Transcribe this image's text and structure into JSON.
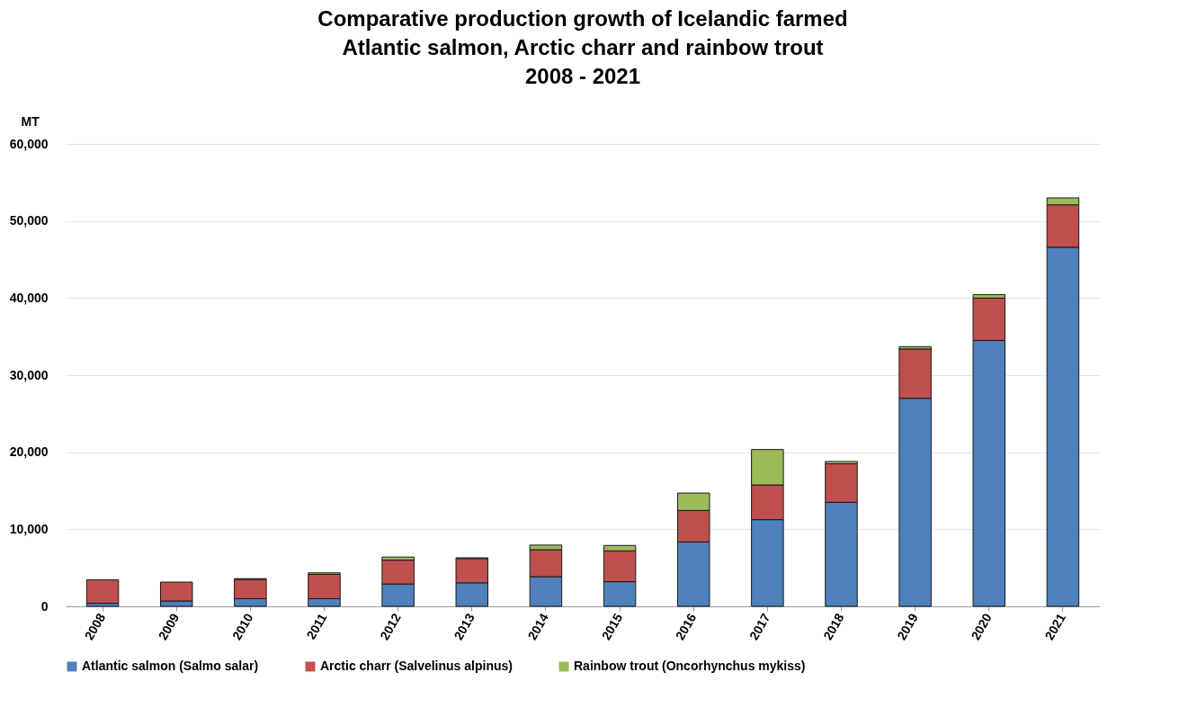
{
  "chart_data": {
    "type": "bar",
    "title": "Comparative production growth of Icelandic farmed\nAtlantic salmon, Arctic charr and rainbow trout\n2008 - 2021",
    "ylabel": "MT",
    "categories": [
      "2008",
      "2009",
      "2010",
      "2011",
      "2012",
      "2013",
      "2014",
      "2015",
      "2016",
      "2017",
      "2018",
      "2019",
      "2020",
      "2021"
    ],
    "series": [
      {
        "name": "Atlantic salmon (Salmo salar)",
        "color": "#4f81bd",
        "values": [
          400,
          700,
          1000,
          1000,
          2900,
          3050,
          3850,
          3200,
          8350,
          11250,
          13500,
          27000,
          34500,
          46600
        ]
      },
      {
        "name": "Arctic charr (Salvelinus alpinus)",
        "color": "#c0504d",
        "values": [
          3050,
          2450,
          2500,
          3150,
          3100,
          3150,
          3500,
          4000,
          4100,
          4500,
          5000,
          6400,
          5500,
          5500
        ]
      },
      {
        "name": "Rainbow trout (Oncorhynchus mykiss)",
        "color": "#9bbb59",
        "values": [
          null,
          null,
          100,
          200,
          400,
          100,
          600,
          700,
          2250,
          4600,
          300,
          300,
          450,
          900
        ]
      }
    ],
    "stacked": true,
    "ylim": [
      0,
      60000
    ],
    "yticks": [
      {
        "value": 0,
        "label": "0"
      },
      {
        "value": 10000,
        "label": "10,000"
      },
      {
        "value": 20000,
        "label": "20,000"
      },
      {
        "value": 30000,
        "label": "30,000"
      },
      {
        "value": 40000,
        "label": "40,000"
      },
      {
        "value": 50000,
        "label": "50,000"
      },
      {
        "value": 60000,
        "label": "60,000"
      }
    ],
    "grid": "y",
    "legend": "bottom"
  }
}
